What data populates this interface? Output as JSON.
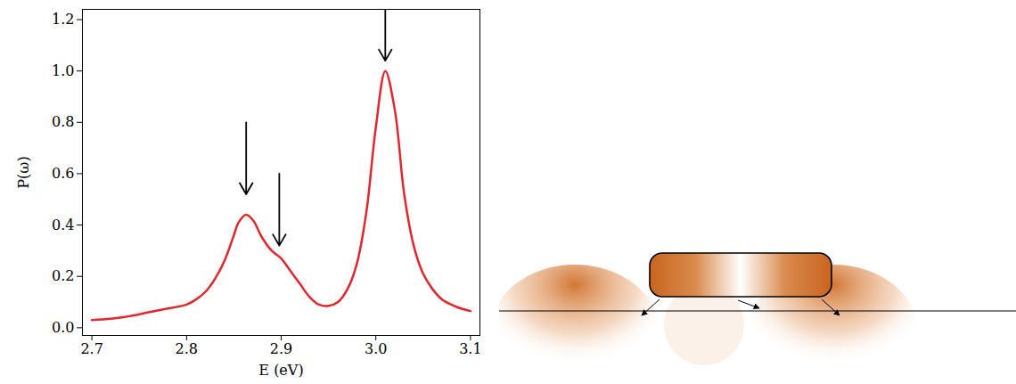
{
  "chart_data": {
    "type": "line",
    "xlabel": "E (eV)",
    "ylabel": "P(ω)",
    "color": "#e3262d",
    "x": [
      2.7,
      2.72,
      2.74,
      2.76,
      2.78,
      2.8,
      2.81,
      2.82,
      2.83,
      2.84,
      2.85,
      2.855,
      2.863,
      2.87,
      2.88,
      2.89,
      2.9,
      2.91,
      2.92,
      2.93,
      2.94,
      2.95,
      2.96,
      2.97,
      2.98,
      2.99,
      3.0,
      3.01,
      3.02,
      3.03,
      3.04,
      3.05,
      3.06,
      3.07,
      3.08,
      3.09,
      3.1
    ],
    "values": [
      0.03,
      0.035,
      0.045,
      0.06,
      0.075,
      0.09,
      0.11,
      0.14,
      0.19,
      0.26,
      0.36,
      0.41,
      0.44,
      0.42,
      0.35,
      0.3,
      0.27,
      0.22,
      0.17,
      0.12,
      0.09,
      0.085,
      0.1,
      0.15,
      0.25,
      0.45,
      0.78,
      1.0,
      0.85,
      0.52,
      0.32,
      0.21,
      0.15,
      0.11,
      0.09,
      0.075,
      0.065
    ],
    "arrows": [
      {
        "x": 2.863,
        "y_tail": 0.8,
        "y_tip": 0.52
      },
      {
        "x": 2.898,
        "y_tail": 0.6,
        "y_tip": 0.32
      },
      {
        "x": 3.01,
        "y_tail": 1.24,
        "y_tip": 1.04
      }
    ],
    "xlim": [
      2.69,
      3.11
    ],
    "ylim": [
      -0.03,
      1.24
    ],
    "xticks": [
      2.7,
      2.8,
      2.9,
      {
        "value": 3,
        "label": "3.0"
      },
      3.1
    ],
    "yticks": [
      {
        "value": 0,
        "label": "0.0"
      },
      0.2,
      0.4,
      0.6,
      0.8,
      {
        "value": 1,
        "label": "1.0"
      },
      1.2
    ]
  }
}
